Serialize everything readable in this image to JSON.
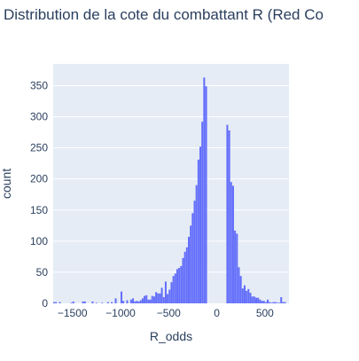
{
  "chart_data": {
    "type": "bar",
    "title": "Distribution de la cote du combattant R (Red Co",
    "xlabel": "R_odds",
    "ylabel": "count",
    "xlim": [
      -1700,
      750
    ],
    "ylim": [
      0,
      385
    ],
    "x_ticks": [
      -1500,
      -1000,
      -500,
      0,
      500
    ],
    "x_tick_labels": [
      "−1500",
      "−1000",
      "−500",
      "0",
      "500"
    ],
    "y_ticks": [
      0,
      50,
      100,
      150,
      200,
      250,
      300,
      350
    ],
    "y_tick_labels": [
      "0",
      "50",
      "100",
      "150",
      "200",
      "250",
      "300",
      "350"
    ],
    "bin_width": 20,
    "bin_starts": [
      -1700,
      -1680,
      -1640,
      -1520,
      -1500,
      -1400,
      -1380,
      -1300,
      -1260,
      -1200,
      -1140,
      -1100,
      -1060,
      -1000,
      -980,
      -940,
      -900,
      -880,
      -860,
      -840,
      -820,
      -800,
      -780,
      -760,
      -740,
      -720,
      -700,
      -680,
      -660,
      -640,
      -620,
      -600,
      -580,
      -560,
      -540,
      -520,
      -500,
      -480,
      -460,
      -440,
      -420,
      -400,
      -380,
      -360,
      -340,
      -320,
      -300,
      -280,
      -260,
      -240,
      -220,
      -200,
      -180,
      -160,
      -140,
      -120,
      100,
      120,
      140,
      160,
      180,
      200,
      220,
      240,
      260,
      280,
      300,
      320,
      340,
      360,
      380,
      400,
      420,
      440,
      460,
      480,
      500,
      520,
      540,
      560,
      580,
      600,
      620,
      640,
      660,
      680,
      700
    ],
    "values": [
      2,
      2,
      2,
      1,
      3,
      3,
      3,
      3,
      1,
      1,
      2,
      2,
      8,
      19,
      4,
      5,
      6,
      8,
      3,
      4,
      3,
      5,
      8,
      12,
      13,
      6,
      6,
      12,
      11,
      18,
      16,
      16,
      25,
      10,
      35,
      15,
      22,
      34,
      44,
      48,
      55,
      57,
      60,
      73,
      83,
      90,
      107,
      125,
      145,
      165,
      190,
      231,
      252,
      292,
      363,
      349,
      287,
      278,
      195,
      189,
      117,
      112,
      58,
      44,
      24,
      29,
      20,
      23,
      17,
      11,
      11,
      9,
      9,
      6,
      4,
      4,
      2,
      6,
      2,
      1,
      2,
      2,
      1,
      1,
      10,
      2,
      2
    ],
    "bar_color": "#636efa",
    "plot_bgcolor": "#e5ecf6",
    "grid": true
  }
}
